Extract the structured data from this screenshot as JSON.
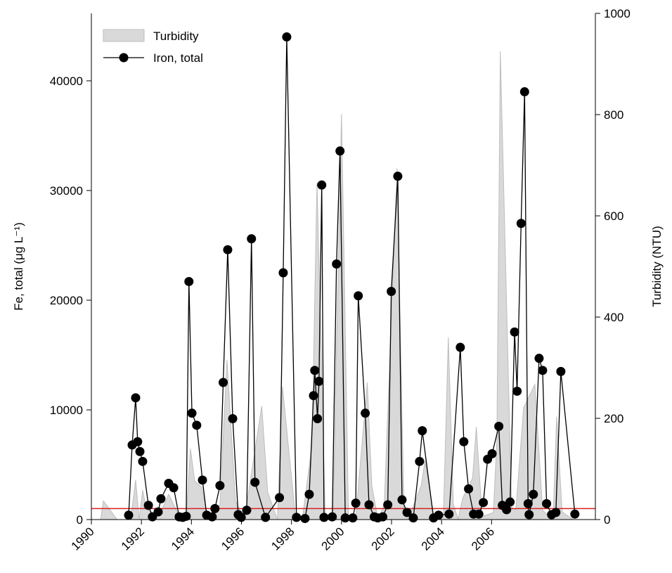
{
  "chart_data": {
    "type": "line",
    "title_left_axis": "Fe, total (μg L⁻¹)",
    "title_right_axis": "Turbidity (NTU)",
    "xlim": [
      1990,
      2010.15
    ],
    "xticks": [
      1990,
      1992,
      1994,
      1996,
      1998,
      2000,
      2002,
      2004,
      2006
    ],
    "ylim": [
      0,
      46150
    ],
    "yticks": [
      0,
      10000,
      20000,
      30000,
      40000
    ],
    "y2lim": [
      0,
      1000
    ],
    "y2ticks": [
      0,
      200,
      400,
      600,
      800,
      1000
    ],
    "legend": "upper-left",
    "reference_line": {
      "value": 1000,
      "color": "#d62020"
    },
    "series": [
      {
        "name": "Turbidity",
        "color": "#d9d9d9",
        "axis": "y2",
        "kind": "area",
        "x": [
          1990.37,
          1990.48,
          1991.03,
          1991.57,
          1991.77,
          1991.91,
          1992.05,
          1992.19,
          1992.7,
          1993.09,
          1993.46,
          1993.79,
          1993.96,
          1994.13,
          1994.41,
          1994.66,
          1995.14,
          1995.42,
          1995.76,
          1996.12,
          1996.81,
          1997.05,
          1997.44,
          1997.64,
          1998.17,
          1998.43,
          1998.82,
          1999.02,
          1999.35,
          1999.66,
          2000.0,
          2000.28,
          2000.56,
          2001.03,
          2001.21,
          2001.46,
          2001.71,
          2002.22,
          2002.5,
          2002.67,
          2003.19,
          2003.34,
          2003.71,
          2004.07,
          2004.27,
          2004.47,
          2004.66,
          2004.85,
          2005.24,
          2005.39,
          2005.62,
          2006.07,
          2006.21,
          2006.35,
          2006.8,
          2006.97,
          2007.28,
          2007.73,
          2008.04,
          2008.46,
          2008.6,
          2008.82,
          2009.27,
          2009.58,
          2010.0,
          2010.2
        ],
        "values": [
          0,
          37,
          0,
          0,
          78,
          0,
          58,
          21,
          7,
          50,
          12,
          0,
          140,
          76,
          64,
          3,
          29,
          315,
          37,
          1,
          224,
          54,
          0,
          262,
          0,
          0,
          146,
          665,
          3,
          0,
          801,
          3,
          0,
          271,
          68,
          0,
          29,
          694,
          14,
          0,
          68,
          117,
          0,
          0,
          360,
          31,
          1,
          43,
          82,
          183,
          6,
          14,
          154,
          925,
          24,
          19,
          221,
          267,
          18,
          0,
          203,
          15,
          0,
          0,
          0,
          0
        ]
      },
      {
        "name": "Iron, total",
        "color": "#000000",
        "axis": "y",
        "kind": "line",
        "x": [
          1991.49,
          1991.63,
          1991.77,
          1991.85,
          1991.94,
          1992.05,
          1992.28,
          1992.44,
          1992.67,
          1992.78,
          1993.09,
          1993.29,
          1993.51,
          1993.65,
          1993.79,
          1993.9,
          1994.02,
          1994.21,
          1994.44,
          1994.61,
          1994.83,
          1994.94,
          1995.14,
          1995.27,
          1995.45,
          1995.65,
          1995.87,
          1995.99,
          1996.21,
          1996.4,
          1996.54,
          1996.96,
          1997.52,
          1997.67,
          1997.81,
          1998.2,
          1998.54,
          1998.71,
          1998.88,
          1998.93,
          1999.04,
          1999.1,
          1999.21,
          1999.3,
          1999.63,
          1999.8,
          1999.94,
          2000.15,
          2000.45,
          2000.57,
          2000.67,
          2000.95,
          2001.1,
          2001.31,
          2001.45,
          2001.65,
          2001.85,
          2001.99,
          2002.25,
          2002.42,
          2002.62,
          2002.87,
          2003.12,
          2003.23,
          2003.68,
          2003.88,
          2004.3,
          2004.75,
          2004.89,
          2005.08,
          2005.28,
          2005.49,
          2005.67,
          2005.84,
          2006.02,
          2006.29,
          2006.43,
          2006.6,
          2006.74,
          2006.92,
          2007.02,
          2007.18,
          2007.32,
          2007.46,
          2007.5,
          2007.67,
          2007.9,
          2008.04,
          2008.2,
          2008.4,
          2008.57,
          2008.77,
          2009.33
        ],
        "values": [
          400,
          6800,
          11100,
          7100,
          6200,
          5300,
          1300,
          250,
          700,
          1900,
          3300,
          2900,
          250,
          200,
          300,
          21700,
          9700,
          8600,
          3600,
          400,
          250,
          1000,
          3100,
          12500,
          24600,
          9200,
          450,
          200,
          850,
          25600,
          3400,
          200,
          2000,
          22500,
          44000,
          200,
          100,
          2300,
          11300,
          13600,
          9200,
          12600,
          30500,
          200,
          250,
          23300,
          33600,
          150,
          150,
          1500,
          20400,
          9700,
          1350,
          250,
          150,
          250,
          1350,
          20800,
          31300,
          1800,
          650,
          150,
          5300,
          8100,
          150,
          400,
          500,
          15700,
          7100,
          2800,
          500,
          500,
          1550,
          5500,
          6000,
          8500,
          1300,
          900,
          1600,
          17100,
          11700,
          27000,
          39000,
          1450,
          450,
          2300,
          14700,
          13600,
          1450,
          450,
          650,
          13500,
          500
        ]
      }
    ]
  }
}
